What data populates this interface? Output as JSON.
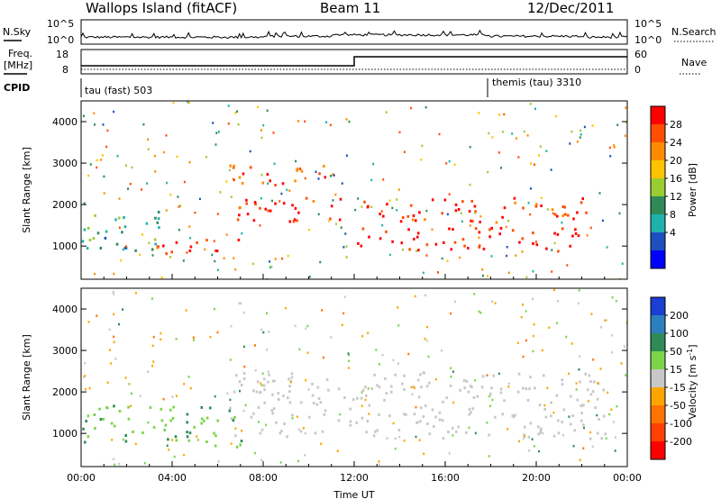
{
  "header": {
    "station": "Wallops Island (fitACF)",
    "beam": "Beam 11",
    "date": "12/Dec/2011"
  },
  "info_panel": {
    "nsky_label": "N.Sky",
    "nsky_ticks": [
      "10^5",
      "10^0"
    ],
    "nsearch_label": "N.Search",
    "nsearch_ticks": [
      "10^5",
      "10^0"
    ],
    "freq_label_line1": "Freq.",
    "freq_label_line2": "[MHz]",
    "freq_ticks": [
      "18",
      "8"
    ],
    "nave_label": "Nave",
    "nave_ticks": [
      "60",
      "0"
    ],
    "cpid_label": "CPID",
    "cpid_modes": [
      {
        "label": "tau (fast) 503",
        "start_hour": 0
      },
      {
        "label": "themis (tau) 3310",
        "start_hour": 18
      }
    ]
  },
  "power_colorbar": {
    "title": "Power [dB]",
    "labels": [
      "28",
      "24",
      "20",
      "16",
      "12",
      "8",
      "4"
    ],
    "colors": [
      "#ff0000",
      "#ff4e00",
      "#ff8c00",
      "#ffc400",
      "#9acd32",
      "#2e8b57",
      "#20b2aa",
      "#1e4fbf",
      "#0000ff"
    ]
  },
  "velocity_colorbar": {
    "title": "Velocity [m s",
    "title_sup": "-1",
    "title_end": "]",
    "labels": [
      "200",
      "100",
      "50",
      "15",
      "-15",
      "-50",
      "-100",
      "-200"
    ],
    "colors": [
      "#1b3fd0",
      "#2b7fbf",
      "#2e8b57",
      "#7cd44a",
      "#c8c8c8",
      "#ffa500",
      "#ff7300",
      "#ff4000",
      "#ff0000"
    ]
  },
  "chart_data": [
    {
      "type": "heatmap",
      "panel": "power",
      "ylabel": "Slant Range [km]",
      "ylim": [
        200,
        4500
      ],
      "y_ticks": [
        1000,
        2000,
        3000,
        4000
      ],
      "xlim_hours": [
        0,
        24
      ],
      "x_tick_labels": [
        "00:00",
        "04:00",
        "08:00",
        "12:00",
        "16:00",
        "20:00",
        "00:00"
      ],
      "units": "dB",
      "color_range": [
        0,
        30
      ],
      "features": [
        {
          "name": "lower band",
          "hours": [
            12,
            22
          ],
          "range_km": [
            900,
            1500
          ],
          "power_db": 30
        },
        {
          "name": "middle band",
          "hours": [
            6.5,
            22.5
          ],
          "range_km": [
            1600,
            2200
          ],
          "power_db": 28
        },
        {
          "name": "upper band",
          "hours": [
            6.5,
            11.5
          ],
          "range_km": [
            2500,
            3000
          ],
          "power_db": 25
        },
        {
          "name": "early arc",
          "hours": [
            3,
            7
          ],
          "range_km": [
            800,
            1200
          ],
          "power_db": 27
        },
        {
          "name": "pre-dawn scatter",
          "hours": [
            0,
            3.5
          ],
          "range_km": [
            900,
            1900
          ],
          "power_db": 10
        }
      ]
    },
    {
      "type": "heatmap",
      "panel": "velocity",
      "ylabel": "Slant Range [km]",
      "ylim": [
        200,
        4500
      ],
      "y_ticks": [
        1000,
        2000,
        3000,
        4000
      ],
      "xlim_hours": [
        0,
        24
      ],
      "x_tick_labels": [
        "00:00",
        "04:00",
        "08:00",
        "12:00",
        "16:00",
        "20:00",
        "00:00"
      ],
      "xlabel": "Time UT",
      "units": "m s-1",
      "color_range": [
        -200,
        200
      ],
      "features": [
        {
          "name": "near-zero band",
          "hours": [
            6.5,
            23
          ],
          "range_km": [
            900,
            2500
          ],
          "velocity": 0
        },
        {
          "name": "positive-velocity scatter",
          "hours": [
            0,
            7
          ],
          "range_km": [
            700,
            1700
          ],
          "velocity": 40
        }
      ]
    }
  ]
}
